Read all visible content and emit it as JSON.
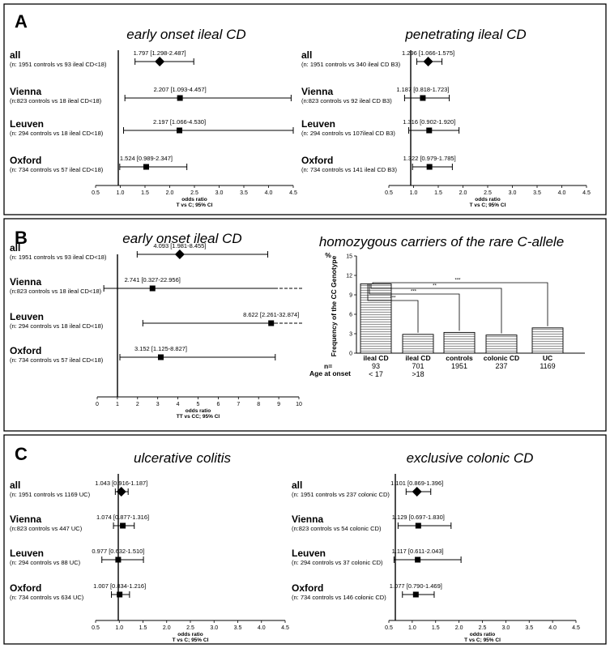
{
  "panels": [
    {
      "letter": "A"
    },
    {
      "letter": "B"
    },
    {
      "letter": "C"
    }
  ],
  "chart_data": [
    {
      "id": "A-left",
      "type": "forest",
      "panel": "A",
      "title": "early onset ileal CD",
      "xlabel": "odds ratio",
      "xlabel2": "T vs C; 95% CI",
      "xlim": [
        0.5,
        4.5
      ],
      "ticks": [
        "0.5",
        "1.0",
        "1.5",
        "2.0",
        "2.5",
        "3.0",
        "3.5",
        "4.0",
        "4.5"
      ],
      "rows": [
        {
          "name": "all",
          "sub": "(n: 1951 controls vs 93 ileal CD<18)",
          "label": "1.797 [1.298-2.487]",
          "est": 1.797,
          "lo": 1.298,
          "hi": 2.487,
          "marker": "diamond"
        },
        {
          "name": "Vienna",
          "sub": "(n:823 controls vs 18 ileal CD<18)",
          "label": "2.207 [1.093-4.457]",
          "est": 2.207,
          "lo": 1.093,
          "hi": 4.457,
          "marker": "square"
        },
        {
          "name": "Leuven",
          "sub": "(n: 294 controls vs 18 ileal CD<18)",
          "label": "2.197 [1.066-4.530]",
          "est": 2.197,
          "lo": 1.066,
          "hi": 4.53,
          "marker": "square"
        },
        {
          "name": "Oxford",
          "sub": "(n: 734 controls vs 57 ileal CD<18)",
          "label": "1.524 [0.989-2.347]",
          "est": 1.524,
          "lo": 0.989,
          "hi": 2.347,
          "marker": "square"
        }
      ]
    },
    {
      "id": "A-right",
      "type": "forest",
      "panel": "A",
      "title": "penetrating ileal CD",
      "xlabel": "odds ratio",
      "xlabel2": "T vs C; 95% CI",
      "xlim": [
        0.5,
        4.5
      ],
      "ticks": [
        "0.5",
        "1.0",
        "1.5",
        "2.0",
        "2.5",
        "3.0",
        "3.5",
        "4.0",
        "4.5"
      ],
      "rows": [
        {
          "name": "all",
          "sub": "(n: 1951 controls vs 340 ileal CD B3)",
          "label": "1.296 [1.066-1.575]",
          "est": 1.296,
          "lo": 1.066,
          "hi": 1.575,
          "marker": "diamond"
        },
        {
          "name": "Vienna",
          "sub": "(n:823 controls vs 92 ileal CD B3)",
          "label": "1.187 [0.818-1.723]",
          "est": 1.187,
          "lo": 0.818,
          "hi": 1.723,
          "marker": "square"
        },
        {
          "name": "Leuven",
          "sub": "(n: 294 controls vs 107ileal CD B3)",
          "label": "1.316 [0.902-1.920]",
          "est": 1.316,
          "lo": 0.902,
          "hi": 1.92,
          "marker": "square"
        },
        {
          "name": "Oxford",
          "sub": "(n: 734 controls vs 141 ileal CD B3)",
          "label": "1.322 [0.979-1.785]",
          "est": 1.322,
          "lo": 0.979,
          "hi": 1.785,
          "marker": "square"
        }
      ]
    },
    {
      "id": "B-left",
      "type": "forest",
      "panel": "B",
      "title": "early onset ileal CD",
      "xlabel": "odds ratio",
      "xlabel2": "TT vs CC; 95% CI",
      "xlim": [
        0,
        10
      ],
      "ticks": [
        "0",
        "1",
        "2",
        "3",
        "4",
        "5",
        "6",
        "7",
        "8",
        "9",
        "10"
      ],
      "rows": [
        {
          "name": "all",
          "sub": "(n: 1951 controls vs 93 ileal CD<18)",
          "label": "4.093 [1.981-8.455]",
          "est": 4.093,
          "lo": 1.981,
          "hi": 8.455,
          "marker": "diamond"
        },
        {
          "name": "Vienna",
          "sub": "(n:823 controls vs 18 ileal CD<18)",
          "label": "2.741 [0.327-22.956]",
          "est": 2.741,
          "lo": 0.327,
          "hi": 22.956,
          "marker": "square"
        },
        {
          "name": "Leuven",
          "sub": "(n: 294 controls vs 18 ileal CD<18)",
          "label": "8.622 [2.261-32.874]",
          "est": 8.622,
          "lo": 2.261,
          "hi": 32.874,
          "marker": "square"
        },
        {
          "name": "Oxford",
          "sub": "(n: 734 controls vs 57 ileal CD<18)",
          "label": "3.152 [1.125-8.827]",
          "est": 3.152,
          "lo": 1.125,
          "hi": 8.827,
          "marker": "square"
        }
      ]
    },
    {
      "id": "B-right",
      "type": "bar",
      "panel": "B",
      "title": "homozygous carriers of the rare C-allele",
      "ylabel": "Frequency of the CC Genotype",
      "yunit": "%",
      "ylim": [
        0,
        15
      ],
      "yticks": [
        "0",
        "3",
        "6",
        "9",
        "12",
        "15"
      ],
      "categories": [
        "ileal CD",
        "ileal CD",
        "controls",
        "colonic CD",
        "UC"
      ],
      "values": [
        10.7,
        2.9,
        3.2,
        2.8,
        3.9
      ],
      "n_label": "n=",
      "n": [
        "93",
        "701",
        "1951",
        "237",
        "1169"
      ],
      "age_label": "Age at onset",
      "age": [
        "< 17",
        ">18",
        "",
        "",
        ""
      ],
      "significance": [
        {
          "from": 0,
          "to": 1,
          "label": "***"
        },
        {
          "from": 0,
          "to": 2,
          "label": "***"
        },
        {
          "from": 0,
          "to": 3,
          "label": "**"
        },
        {
          "from": 0,
          "to": 4,
          "label": "***"
        }
      ]
    },
    {
      "id": "C-left",
      "type": "forest",
      "panel": "C",
      "title": "ulcerative colitis",
      "xlabel": "odds ratio",
      "xlabel2": "T vs C; 95% CI",
      "xlim": [
        0.5,
        4.5
      ],
      "ticks": [
        "0.5",
        "1.0",
        "1.5",
        "2.0",
        "2.5",
        "3.0",
        "3.5",
        "4.0",
        "4.5"
      ],
      "rows": [
        {
          "name": "all",
          "sub": "(n: 1951 controls vs 1169 UC)",
          "label": "1.043 [0.916-1.187]",
          "est": 1.043,
          "lo": 0.916,
          "hi": 1.187,
          "marker": "diamond"
        },
        {
          "name": "Vienna",
          "sub": "(n:823 controls vs 447 UC)",
          "label": "1.074 [0.877-1.316]",
          "est": 1.074,
          "lo": 0.877,
          "hi": 1.316,
          "marker": "square"
        },
        {
          "name": "Leuven",
          "sub": "(n: 294 controls vs 88 UC)",
          "label": "0.977    [0.632-1.510]",
          "est": 0.977,
          "lo": 0.632,
          "hi": 1.51,
          "marker": "square"
        },
        {
          "name": "Oxford",
          "sub": "(n: 734 controls vs 634 UC)",
          "label": "1.007 [0.834-1.216]",
          "est": 1.007,
          "lo": 0.834,
          "hi": 1.216,
          "marker": "square"
        }
      ]
    },
    {
      "id": "C-right",
      "type": "forest",
      "panel": "C",
      "title": "exclusive colonic CD",
      "xlabel": "odds ratio",
      "xlabel2": "T vs C; 95% CI",
      "xlim": [
        0.5,
        4.5
      ],
      "ticks": [
        "0.5",
        "1.0",
        "1.5",
        "2.0",
        "2.5",
        "3.0",
        "3.5",
        "4.0",
        "4.5"
      ],
      "rows": [
        {
          "name": "all",
          "sub": "(n: 1951 controls vs 237 colonic CD)",
          "label": "1.101 [0.869-1.396]",
          "est": 1.101,
          "lo": 0.869,
          "hi": 1.396,
          "marker": "diamond"
        },
        {
          "name": "Vienna",
          "sub": "(n:823 controls vs 54 colonic CD)",
          "label": "1.129 [0.697-1.830]",
          "est": 1.129,
          "lo": 0.697,
          "hi": 1.83,
          "marker": "square"
        },
        {
          "name": "Leuven",
          "sub": "(n: 294 controls vs 37 colonic CD)",
          "label": "1.117 [0.611-2.043]",
          "est": 1.117,
          "lo": 0.611,
          "hi": 2.043,
          "marker": "square"
        },
        {
          "name": "Oxford",
          "sub": "(n: 734 controls vs 146 colonic CD)",
          "label": "1.077 [0.790-1.469]",
          "est": 1.077,
          "lo": 0.79,
          "hi": 1.469,
          "marker": "square"
        }
      ]
    }
  ]
}
